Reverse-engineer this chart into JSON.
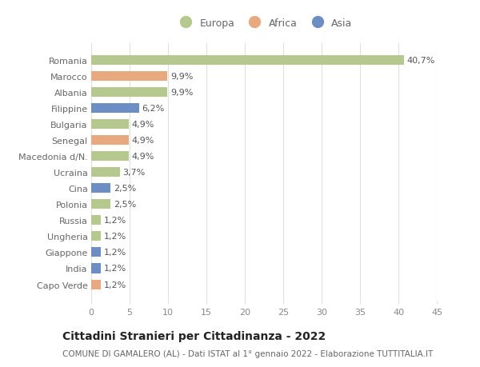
{
  "countries": [
    "Romania",
    "Marocco",
    "Albania",
    "Filippine",
    "Bulgaria",
    "Senegal",
    "Macedonia d/N.",
    "Ucraina",
    "Cina",
    "Polonia",
    "Russia",
    "Ungheria",
    "Giappone",
    "India",
    "Capo Verde"
  ],
  "values": [
    40.7,
    9.9,
    9.9,
    6.2,
    4.9,
    4.9,
    4.9,
    3.7,
    2.5,
    2.5,
    1.2,
    1.2,
    1.2,
    1.2,
    1.2
  ],
  "labels": [
    "40,7%",
    "9,9%",
    "9,9%",
    "6,2%",
    "4,9%",
    "4,9%",
    "4,9%",
    "3,7%",
    "2,5%",
    "2,5%",
    "1,2%",
    "1,2%",
    "1,2%",
    "1,2%",
    "1,2%"
  ],
  "continents": [
    "Europa",
    "Africa",
    "Europa",
    "Asia",
    "Europa",
    "Africa",
    "Europa",
    "Europa",
    "Asia",
    "Europa",
    "Europa",
    "Europa",
    "Asia",
    "Asia",
    "Africa"
  ],
  "colors": {
    "Europa": "#b5c98e",
    "Africa": "#e8a97e",
    "Asia": "#6d8ec4"
  },
  "title": "Cittadini Stranieri per Cittadinanza - 2022",
  "subtitle": "COMUNE DI GAMALERO (AL) - Dati ISTAT al 1° gennaio 2022 - Elaborazione TUTTITALIA.IT",
  "xlim": [
    0,
    45
  ],
  "xticks": [
    0,
    5,
    10,
    15,
    20,
    25,
    30,
    35,
    40,
    45
  ],
  "bg_color": "#ffffff",
  "grid_color": "#e0e0e0",
  "bar_height": 0.6,
  "label_fontsize": 8,
  "title_fontsize": 10,
  "subtitle_fontsize": 7.5,
  "tick_fontsize": 8,
  "legend_fontsize": 9,
  "label_color": "#555555",
  "ytick_color": "#666666",
  "xtick_color": "#888888"
}
